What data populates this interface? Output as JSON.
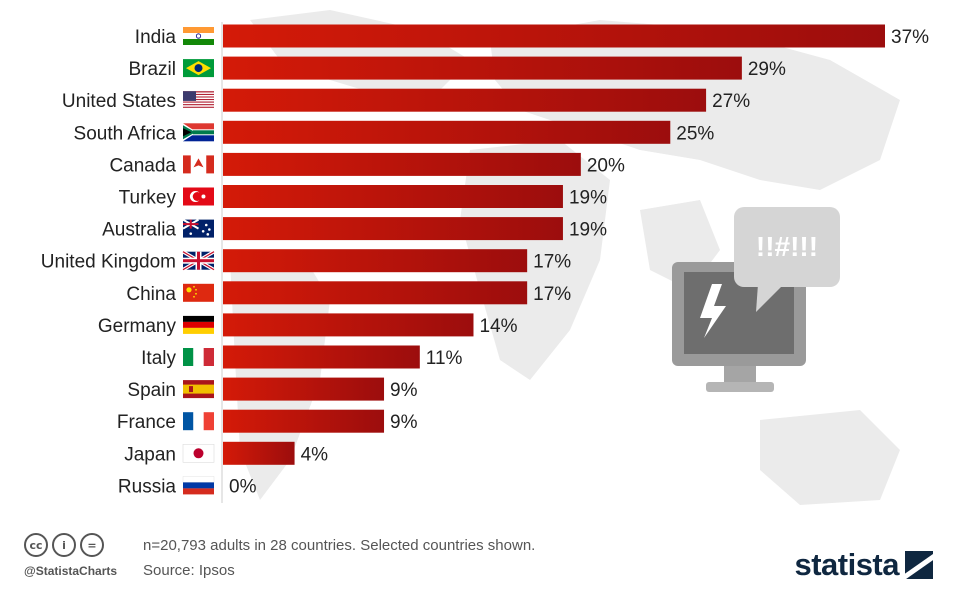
{
  "chart_data": {
    "type": "bar",
    "orientation": "horizontal",
    "categories": [
      "India",
      "Brazil",
      "United States",
      "South Africa",
      "Canada",
      "Turkey",
      "Australia",
      "United Kingdom",
      "China",
      "Germany",
      "Italy",
      "Spain",
      "France",
      "Japan",
      "Russia"
    ],
    "values": [
      37,
      29,
      27,
      25,
      20,
      19,
      19,
      17,
      17,
      14,
      11,
      9,
      9,
      4,
      0
    ],
    "value_labels": [
      "37%",
      "29%",
      "27%",
      "25%",
      "20%",
      "19%",
      "19%",
      "17%",
      "17%",
      "14%",
      "11%",
      "9%",
      "9%",
      "4%",
      "0%"
    ],
    "flags": [
      "india-flag-icon",
      "brazil-flag-icon",
      "united-states-flag-icon",
      "south-africa-flag-icon",
      "canada-flag-icon",
      "turkey-flag-icon",
      "australia-flag-icon",
      "united-kingdom-flag-icon",
      "china-flag-icon",
      "germany-flag-icon",
      "italy-flag-icon",
      "spain-flag-icon",
      "france-flag-icon",
      "japan-flag-icon",
      "russia-flag-icon"
    ],
    "xlim": [
      0,
      37
    ],
    "grid": false,
    "legend": "none",
    "bar_color_start": "#d41a08",
    "bar_color_end": "#9c0d0d"
  },
  "illustration": {
    "icon": "computer-cursing-icon",
    "bubble_text": "!!#!!!"
  },
  "footer": {
    "cc_icons": [
      "cc",
      "i",
      "="
    ],
    "handle": "@StatistaCharts",
    "note": "n=20,793 adults in 28 countries. Selected countries shown.",
    "source": "Source: Ipsos",
    "brand": "statista"
  }
}
